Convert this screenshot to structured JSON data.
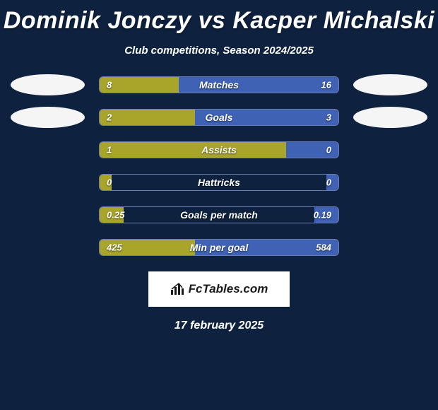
{
  "title": "Dominik Jonczy vs Kacper Michalski",
  "subtitle": "Club competitions, Season 2024/2025",
  "date": "17 february 2025",
  "footer_label": "FcTables.com",
  "colors": {
    "background": "#0e2240",
    "border": "#6b7db5",
    "left_bar": "#a9a52b",
    "right_bar": "#3f62b5",
    "badge_left": "#f5f5f5",
    "badge_right": "#f5f5f5",
    "text": "#ffffff"
  },
  "stats": [
    {
      "label": "Matches",
      "left_value": "8",
      "right_value": "16",
      "left_pct": 33,
      "right_pct": 67,
      "show_badges": true
    },
    {
      "label": "Goals",
      "left_value": "2",
      "right_value": "3",
      "left_pct": 40,
      "right_pct": 60,
      "show_badges": true
    },
    {
      "label": "Assists",
      "left_value": "1",
      "right_value": "0",
      "left_pct": 78,
      "right_pct": 22,
      "show_badges": false
    },
    {
      "label": "Hattricks",
      "left_value": "0",
      "right_value": "0",
      "left_pct": 5,
      "right_pct": 5,
      "show_badges": false
    },
    {
      "label": "Goals per match",
      "left_value": "0.25",
      "right_value": "0.19",
      "left_pct": 10,
      "right_pct": 10,
      "show_badges": false
    },
    {
      "label": "Min per goal",
      "left_value": "425",
      "right_value": "584",
      "left_pct": 40,
      "right_pct": 60,
      "show_badges": false
    }
  ]
}
